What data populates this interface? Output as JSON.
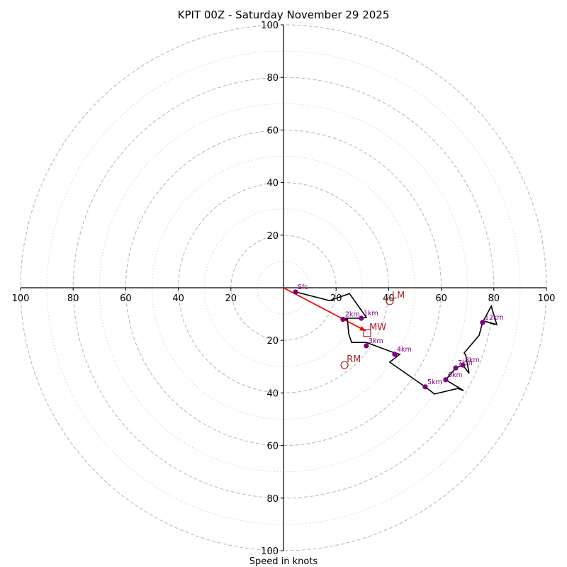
{
  "chart_data": {
    "type": "line",
    "subtype": "hodograph",
    "title": "KPIT 00Z - Saturday November 29 2025",
    "xlabel": "Speed in knots",
    "ylabel": "",
    "xlim": [
      -100,
      100
    ],
    "ylim": [
      -100,
      100
    ],
    "ring_major_step": 20,
    "ring_minor_step": 10,
    "ring_max": 100,
    "x_tick_labels": [
      "100",
      "80",
      "60",
      "40",
      "20",
      "20",
      "40",
      "60",
      "80",
      "100"
    ],
    "x_tick_values": [
      -100,
      -80,
      -60,
      -40,
      -20,
      20,
      40,
      60,
      80,
      100
    ],
    "y_tick_labels": [
      "100",
      "80",
      "60",
      "40",
      "20",
      "20",
      "40",
      "60",
      "80",
      "100"
    ],
    "y_tick_values": [
      100,
      80,
      60,
      40,
      20,
      -20,
      -40,
      -60,
      -80,
      -100
    ],
    "grid": true,
    "hodograph_trace": {
      "name": "wind profile",
      "color": "#000000",
      "u": [
        4.6,
        17.5,
        25.1,
        31.5,
        29.6,
        23.4,
        22.6,
        24.3,
        24.8,
        25.9,
        31.5,
        35.0,
        42.3,
        44.2,
        40.4,
        53.9,
        57.4,
        66.3,
        68.5,
        61.7,
        65.5,
        68.2,
        70.6,
        69.3,
        68.7,
        74.4,
        75.7,
        79.0,
        81.1,
        76.5,
        80.3
      ],
      "v": [
        -1.6,
        -4.9,
        -2.2,
        -11.3,
        -11.6,
        -11.6,
        -12.0,
        -12.0,
        -17.5,
        -20.8,
        -20.8,
        -22.1,
        -24.8,
        -25.3,
        -28.3,
        -37.7,
        -40.4,
        -38.3,
        -39.1,
        -35.0,
        -30.5,
        -29.4,
        -32.6,
        -25.6,
        -24.8,
        -18.1,
        -13.2,
        -7.0,
        -14.0,
        -12.7,
        -14.0
      ]
    },
    "height_markers": [
      {
        "label": "Sfc",
        "u": 4.6,
        "v": -1.6
      },
      {
        "label": "1km",
        "u": 29.6,
        "v": -11.6
      },
      {
        "label": "2km",
        "u": 22.6,
        "v": -12.0
      },
      {
        "label": "3km",
        "u": 31.5,
        "v": -22.1
      },
      {
        "label": "4km",
        "u": 42.3,
        "v": -25.3
      },
      {
        "label": "5km",
        "u": 53.9,
        "v": -37.7
      },
      {
        "label": "6km",
        "u": 61.7,
        "v": -35.0
      },
      {
        "label": "7km",
        "u": 65.5,
        "v": -30.5
      },
      {
        "label": "8km",
        "u": 68.2,
        "v": -29.4
      },
      {
        "label": "12km",
        "u": 75.7,
        "v": -13.2
      }
    ],
    "marker_color": "#800080",
    "storm_motion": {
      "color": "#b22222",
      "mean_wind": {
        "label": "MW",
        "u": 31.8,
        "v": -17.2,
        "symbol": "square"
      },
      "left_mover": {
        "label": "LM",
        "u": 40.4,
        "v": -5.1,
        "symbol": "circle"
      },
      "right_mover": {
        "label": "RM",
        "u": 23.2,
        "v": -29.4,
        "symbol": "circle"
      }
    },
    "shear_vector": {
      "color": "#ff0000",
      "from": [
        0,
        0
      ],
      "to": [
        31.2,
        -16.4
      ]
    }
  }
}
